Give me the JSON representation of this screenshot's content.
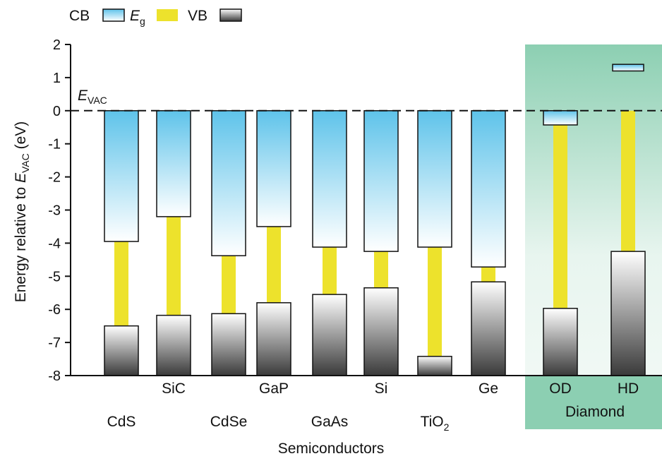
{
  "chart_data": {
    "type": "bar",
    "xlabel": "Semiconductors",
    "ylabel": {
      "prefix": "Energy relative to ",
      "sym": "E",
      "sub": "VAC",
      "suffix": " (eV)"
    },
    "ylim": [
      -8,
      2
    ],
    "yticks": [
      "2",
      "1",
      "0",
      "-1",
      "-2",
      "-3",
      "-4",
      "-5",
      "-6",
      "-7",
      "-8"
    ],
    "vacuum_label": {
      "sym": "E",
      "sub": "VAC"
    },
    "legend": {
      "cb": "CB",
      "eg_sym": "E",
      "eg_sub": "g",
      "vb": "VB"
    },
    "group_label": "Diamond",
    "colors": {
      "cb_top": "#5ec3ea",
      "cb_bottom": "#ffffff",
      "eg": "#ede22c",
      "vb_top": "#ffffff",
      "vb_bottom": "#3a3a3a",
      "highlight_top": "#8ccfb2",
      "highlight_bottom": "#f4faf7"
    },
    "materials": [
      {
        "name": "CdS",
        "sub": "",
        "cbm": -3.95,
        "vbm": -6.5
      },
      {
        "name": "SiC",
        "sub": "",
        "cbm": -3.2,
        "vbm": -6.18
      },
      {
        "name": "CdSe",
        "sub": "",
        "cbm": -4.38,
        "vbm": -6.13
      },
      {
        "name": "GaP",
        "sub": "",
        "cbm": -3.5,
        "vbm": -5.8
      },
      {
        "name": "GaAs",
        "sub": "",
        "cbm": -4.12,
        "vbm": -5.55
      },
      {
        "name": "Si",
        "sub": "",
        "cbm": -4.25,
        "vbm": -5.35
      },
      {
        "name": "TiO",
        "sub": "2",
        "cbm": -4.12,
        "vbm": -7.42
      },
      {
        "name": "Ge",
        "sub": "",
        "cbm": -4.72,
        "vbm": -5.17
      },
      {
        "name": "OD",
        "sub": "",
        "cbm": -0.43,
        "vbm": -5.97
      },
      {
        "name": "HD",
        "sub": "",
        "cbm": 1.3,
        "vbm": -4.25
      }
    ]
  }
}
